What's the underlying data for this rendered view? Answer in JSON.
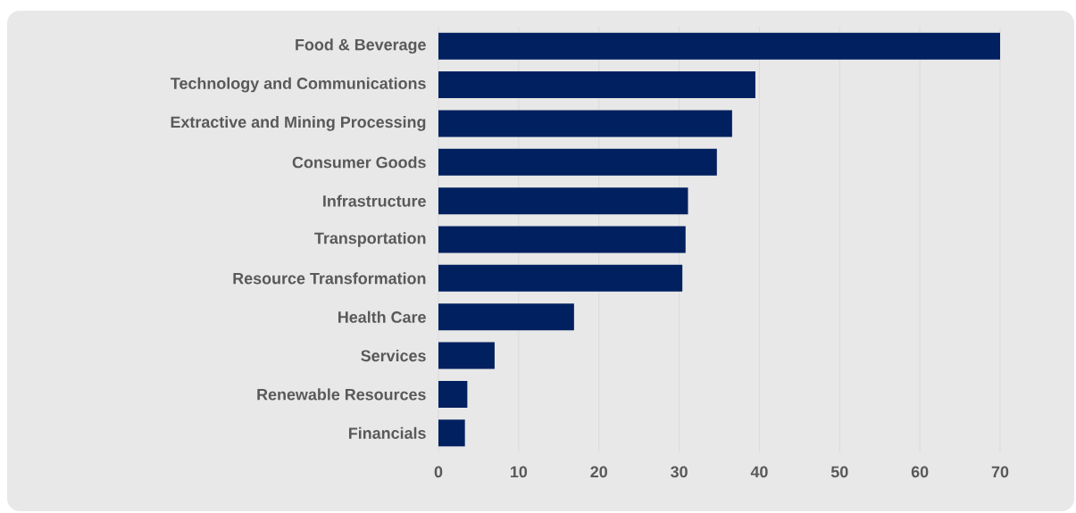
{
  "chart_data": {
    "type": "bar",
    "orientation": "horizontal",
    "categories": [
      "Food & Beverage",
      "Technology and Communications",
      "Extractive and Mining Processing",
      "Consumer Goods",
      "Infrastructure",
      "Transportation",
      "Resource Transformation",
      "Health Care",
      "Services",
      "Renewable Resources",
      "Financials"
    ],
    "values": [
      70,
      39.5,
      36.6,
      34.7,
      31.1,
      30.8,
      30.4,
      16.9,
      7.0,
      3.6,
      3.3
    ],
    "color": "#002060",
    "xlim": [
      0,
      70
    ],
    "xticks": [
      0,
      10,
      20,
      30,
      40,
      50,
      60,
      70
    ],
    "grid": "x"
  }
}
